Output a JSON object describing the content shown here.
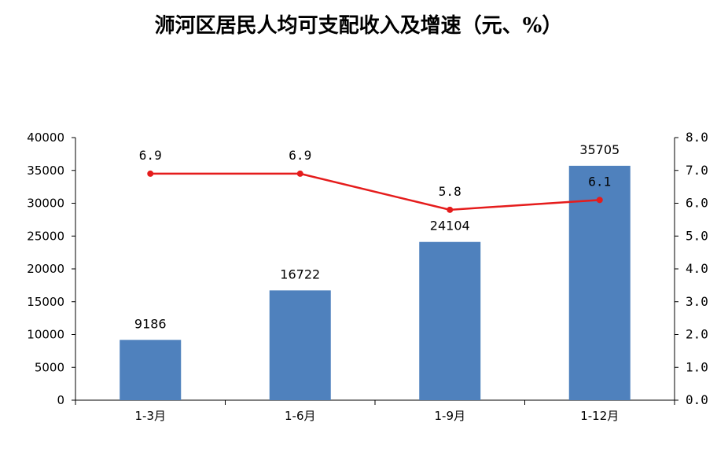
{
  "chart_data": {
    "type": "bar",
    "title": "浉河区居民人均可支配收入及增速（元、%）",
    "categories": [
      "1-3月",
      "1-6月",
      "1-9月",
      "1-12月"
    ],
    "series": [
      {
        "type": "bar",
        "axis": "left",
        "values": [
          9186,
          16722,
          24104,
          35705
        ]
      },
      {
        "type": "line",
        "axis": "right",
        "values": [
          6.9,
          6.9,
          5.8,
          6.1
        ]
      }
    ],
    "ylim": [
      0,
      40000
    ],
    "y_ticks": [
      "0",
      "5000",
      "10000",
      "15000",
      "20000",
      "25000",
      "30000",
      "35000",
      "40000"
    ],
    "y2lim": [
      0,
      8
    ],
    "y2_ticks": [
      "0.0",
      "1.0",
      "2.0",
      "3.0",
      "4.0",
      "5.0",
      "6.0",
      "7.0",
      "8.0"
    ],
    "bar_labels": [
      "9186",
      "16722",
      "24104",
      "35705"
    ],
    "line_labels": [
      "6.9",
      "6.9",
      "5.8",
      "6.1"
    ],
    "grid": false,
    "legend": "none",
    "colors": {
      "bar": "#4f81bd",
      "line": "#e51c1c",
      "axis": "#000000"
    }
  }
}
